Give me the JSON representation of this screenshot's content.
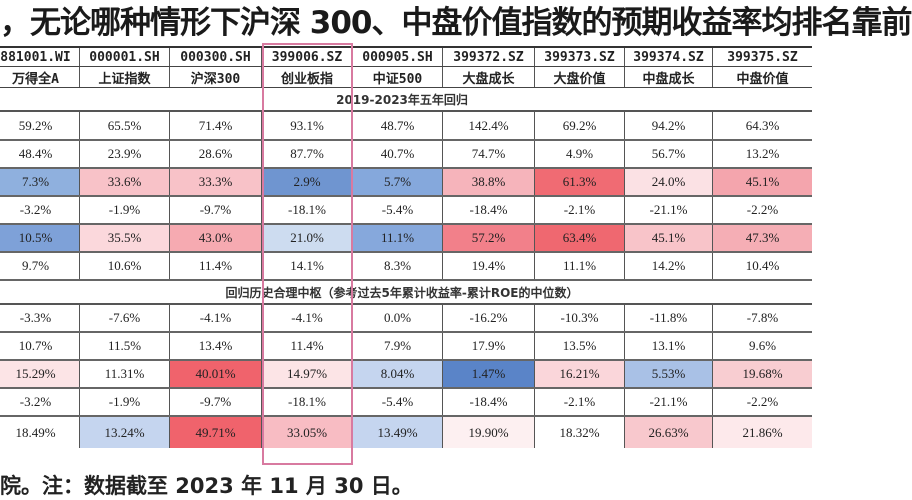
{
  "title": "，无论哪种情形下沪深 300、中盘价值指数的预期收益率均排名靠前",
  "columns": [
    {
      "code": "881001.WI",
      "name": "万得全A"
    },
    {
      "code": "000001.SH",
      "name": "上证指数"
    },
    {
      "code": "000300.SH",
      "name": "沪深300"
    },
    {
      "code": "399006.SZ",
      "name": "创业板指"
    },
    {
      "code": "000905.SH",
      "name": "中证500"
    },
    {
      "code": "399372.SZ",
      "name": "大盘成长"
    },
    {
      "code": "399373.SZ",
      "name": "大盘价值"
    },
    {
      "code": "399374.SZ",
      "name": "中盘成长"
    },
    {
      "code": "399375.SZ",
      "name": "中盘价值"
    }
  ],
  "section1": {
    "title": "2019-2023年五年回归",
    "rows": [
      {
        "values": [
          "59.2%",
          "65.5%",
          "71.4%",
          "93.1%",
          "48.7%",
          "142.4%",
          "69.2%",
          "94.2%",
          "64.3%"
        ],
        "colors": [
          "",
          "",
          "",
          "",
          "",
          "",
          "",
          "",
          ""
        ]
      },
      {
        "values": [
          "48.4%",
          "23.9%",
          "28.6%",
          "87.7%",
          "40.7%",
          "74.7%",
          "4.9%",
          "56.7%",
          "13.2%"
        ],
        "colors": [
          "",
          "",
          "",
          "",
          "",
          "",
          "",
          "",
          ""
        ]
      },
      {
        "values": [
          "7.3%",
          "33.6%",
          "33.3%",
          "2.9%",
          "5.7%",
          "38.8%",
          "61.3%",
          "24.0%",
          "45.1%"
        ],
        "colors": [
          "#8fb0de",
          "#f8c2c8",
          "#f8c2c8",
          "#6f95d0",
          "#85a8dc",
          "#f6b4bb",
          "#f06b73",
          "#fbe1e4",
          "#f4a5ad"
        ]
      },
      {
        "values": [
          "-3.2%",
          "-1.9%",
          "-9.7%",
          "-18.1%",
          "-5.4%",
          "-18.4%",
          "-2.1%",
          "-21.1%",
          "-2.2%"
        ],
        "colors": [
          "",
          "",
          "",
          "",
          "",
          "",
          "",
          "",
          ""
        ]
      },
      {
        "values": [
          "10.5%",
          "35.5%",
          "43.0%",
          "21.0%",
          "11.1%",
          "57.2%",
          "63.4%",
          "45.1%",
          "47.3%"
        ],
        "colors": [
          "#7ea1d8",
          "#fbd8dc",
          "#f6aab1",
          "#cddcf0",
          "#86a8dc",
          "#f2808a",
          "#ef6870",
          "#f8c4c9",
          "#f5aeb5"
        ]
      },
      {
        "values": [
          "9.7%",
          "10.6%",
          "11.4%",
          "14.1%",
          "8.3%",
          "19.4%",
          "11.1%",
          "14.2%",
          "10.4%"
        ],
        "colors": [
          "",
          "",
          "",
          "",
          "",
          "",
          "",
          "",
          ""
        ]
      }
    ]
  },
  "section2": {
    "title": "回归历史合理中枢（参考过去5年累计收益率-累计ROE的中位数）",
    "rows": [
      {
        "values": [
          "-3.3%",
          "-7.6%",
          "-4.1%",
          "-4.1%",
          "0.0%",
          "-16.2%",
          "-10.3%",
          "-11.8%",
          "-7.8%"
        ],
        "colors": [
          "",
          "",
          "",
          "",
          "",
          "",
          "",
          "",
          ""
        ]
      },
      {
        "values": [
          "10.7%",
          "11.5%",
          "13.4%",
          "11.4%",
          "7.9%",
          "17.9%",
          "13.5%",
          "13.1%",
          "9.6%"
        ],
        "colors": [
          "",
          "",
          "",
          "",
          "",
          "",
          "",
          "",
          ""
        ]
      },
      {
        "values": [
          "15.29%",
          "11.31%",
          "40.01%",
          "14.97%",
          "8.04%",
          "1.47%",
          "16.21%",
          "5.53%",
          "19.68%"
        ],
        "colors": [
          "#fce4e6",
          "",
          "#f0636c",
          "#fce4e6",
          "#c5d5ef",
          "#5a84c8",
          "#fad6da",
          "#a9c1e6",
          "#f8cdd1"
        ]
      },
      {
        "values": [
          "-3.2%",
          "-1.9%",
          "-9.7%",
          "-18.1%",
          "-5.4%",
          "-18.4%",
          "-2.1%",
          "-21.1%",
          "-2.2%"
        ],
        "colors": [
          "",
          "",
          "",
          "",
          "",
          "",
          "",
          "",
          ""
        ]
      },
      {
        "values": [
          "18.49%",
          "13.24%",
          "49.71%",
          "33.05%",
          "13.49%",
          "19.90%",
          "18.32%",
          "26.63%",
          "21.86%"
        ],
        "colors": [
          "",
          "#c5d5ef",
          "#f0636c",
          "#f8bcc3",
          "#c5d5ef",
          "#fdf0f1",
          "",
          "#f8c8cd",
          "#fde9eb"
        ]
      }
    ]
  },
  "footer": "院。注：数据截至 2023 年 11 月 30 日。",
  "highlight_color": "#d87aa0"
}
